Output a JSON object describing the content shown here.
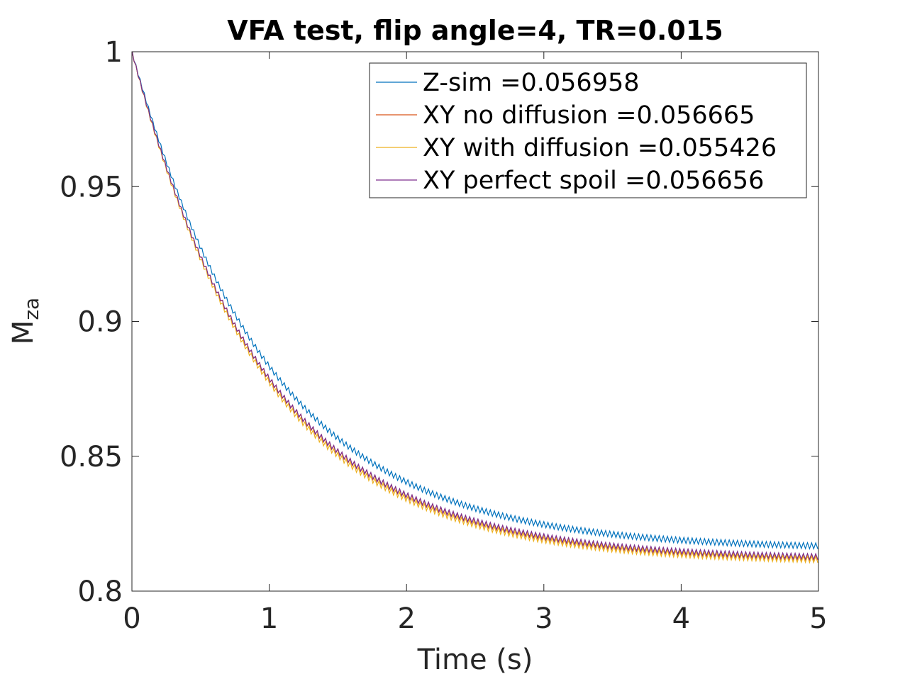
{
  "chart_data": {
    "type": "line",
    "title": "VFA test, flip angle=4, TR=0.015",
    "xlabel": "Time (s)",
    "ylabel_main": "M",
    "ylabel_sub": "za",
    "xlim": [
      0,
      5
    ],
    "ylim": [
      0.8,
      1
    ],
    "x_ticks": [
      0,
      1,
      2,
      3,
      4,
      5
    ],
    "x_tick_labels": [
      "0",
      "1",
      "2",
      "3",
      "4",
      "5"
    ],
    "y_ticks": [
      0.8,
      0.85,
      0.9,
      0.95,
      1
    ],
    "y_tick_labels": [
      "0.8",
      "0.85",
      "0.9",
      "0.95",
      "1"
    ],
    "grid": false,
    "legend_position": "top-right",
    "tr": 0.015,
    "series": [
      {
        "name": "Z-sim =0.056958",
        "color": "#0072BD",
        "initial": 1.0,
        "steady_state": 0.8155,
        "time_constant": 1.0,
        "ripple": 0.0022
      },
      {
        "name": "XY no diffusion =0.056665",
        "color": "#D95319",
        "initial": 1.0,
        "steady_state": 0.8115,
        "time_constant": 0.97,
        "ripple": 0.0022
      },
      {
        "name": "XY with diffusion =0.055426",
        "color": "#EDB120",
        "initial": 1.0,
        "steady_state": 0.8107,
        "time_constant": 0.96,
        "ripple": 0.0024
      },
      {
        "name": "XY perfect spoil =0.056656",
        "color": "#7E2F8E",
        "initial": 1.0,
        "steady_state": 0.8117,
        "time_constant": 0.97,
        "ripple": 0.0021
      }
    ]
  }
}
